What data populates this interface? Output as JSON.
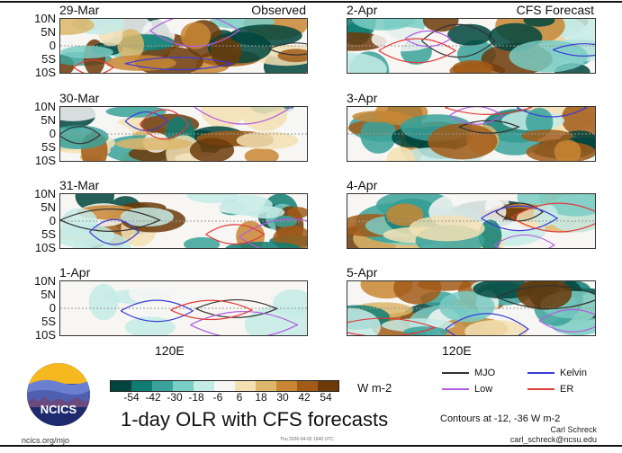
{
  "chart_data": {
    "type": "heatmap",
    "title": "1-day OLR with CFS forecasts",
    "units": "W m-2",
    "colorbar": {
      "ticks": [
        -54,
        -42,
        -30,
        -18,
        -6,
        6,
        18,
        30,
        42,
        54
      ],
      "colors": [
        "#00453d",
        "#0e7c72",
        "#3aa29a",
        "#79cdc4",
        "#c5ebe6",
        "#f6f6f4",
        "#f3e0b4",
        "#ddb66a",
        "#c88634",
        "#a25b17",
        "#6d3a09"
      ]
    },
    "y_ticks": [
      "10N",
      "5N",
      "0",
      "5S",
      "10S"
    ],
    "x_tick": "120E",
    "panel_groups": {
      "observed": "Observed",
      "forecast": "CFS Forecast"
    },
    "panels": [
      {
        "date": "29-Mar",
        "group": "observed"
      },
      {
        "date": "30-Mar",
        "group": "observed"
      },
      {
        "date": "31-Mar",
        "group": "observed"
      },
      {
        "date": "1-Apr",
        "group": "observed"
      },
      {
        "date": "2-Apr",
        "group": "forecast"
      },
      {
        "date": "3-Apr",
        "group": "forecast"
      },
      {
        "date": "4-Apr",
        "group": "forecast"
      },
      {
        "date": "5-Apr",
        "group": "forecast"
      }
    ],
    "legend": [
      {
        "name": "MJO",
        "color": "#333333"
      },
      {
        "name": "Kelvin",
        "color": "#3b3bd6"
      },
      {
        "name": "Low",
        "color": "#b25ce0"
      },
      {
        "name": "ER",
        "color": "#e03a3a"
      }
    ],
    "contours_note": "Contours at -12, -36 W m-2"
  },
  "footer": {
    "logo_text": "NCICS",
    "site": "ncics.org/mjo",
    "timestamp": "Thu 2026-04-02 1640 UTC",
    "author": "Carl Schreck",
    "email": "carl_schreck@ncsu.edu"
  }
}
